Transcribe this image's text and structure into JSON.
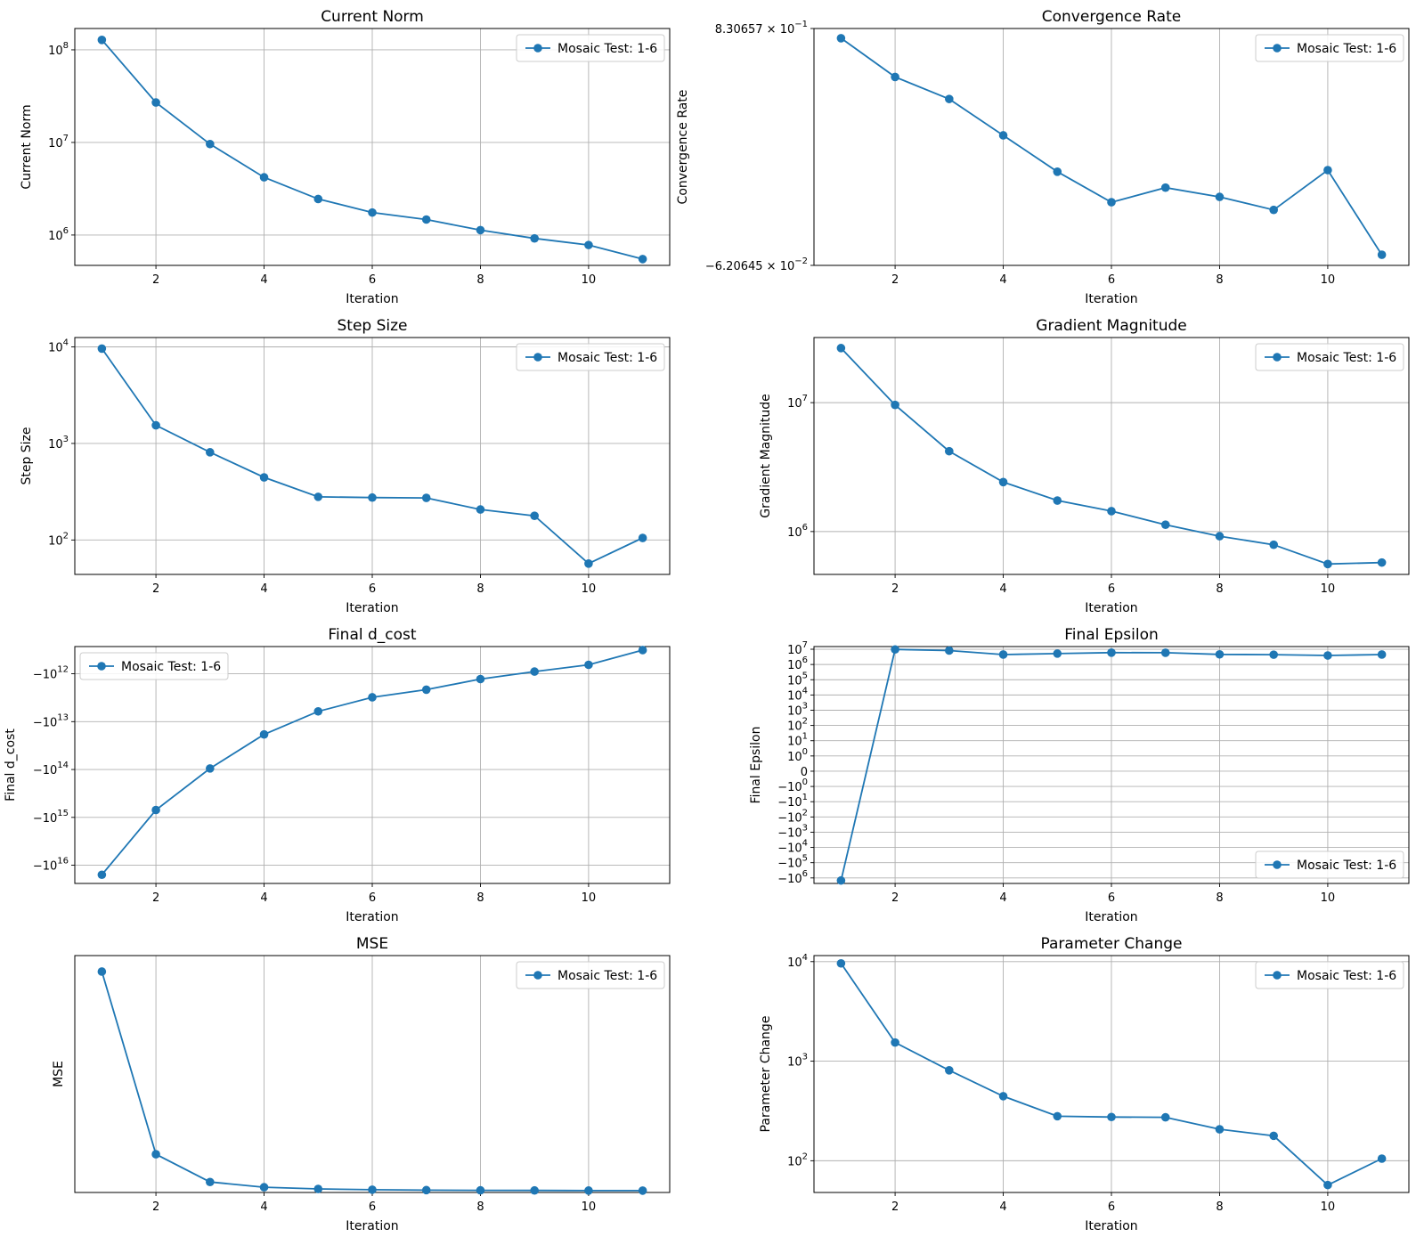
{
  "colors": {
    "series": "#1f77b4",
    "grid": "#b0b0b0",
    "frame": "#000000",
    "legend_border": "#cccccc"
  },
  "chart_data": [
    {
      "id": "current_norm",
      "type": "line",
      "title": "Current Norm",
      "xlabel": "Iteration",
      "ylabel": "Current Norm",
      "yscale": "log",
      "x": [
        1,
        2,
        3,
        4,
        5,
        6,
        7,
        8,
        9,
        10,
        11
      ],
      "series": [
        {
          "name": "Mosaic Test: 1-6",
          "values": [
            128000000,
            27000000,
            9600000,
            4200000,
            2450000,
            1750000,
            1470000,
            1130000,
            920000,
            780000,
            550000
          ]
        }
      ],
      "xlim": [
        0.5,
        11.5
      ],
      "ylim": [
        470000,
        170000000
      ],
      "xticks": [
        2,
        4,
        6,
        8,
        10
      ],
      "xtick_labels": [
        "2",
        "4",
        "6",
        "8",
        "10"
      ],
      "yticks": [
        1000000,
        10000000,
        100000000
      ],
      "ytick_labels": [
        {
          "base": "10",
          "exp": "6"
        },
        {
          "base": "10",
          "exp": "7"
        },
        {
          "base": "10",
          "exp": "8"
        }
      ],
      "legend": "top-right"
    },
    {
      "id": "convergence_rate",
      "type": "line",
      "title": "Convergence Rate",
      "xlabel": "Iteration",
      "ylabel": "Convergence Rate",
      "yscale": "linear",
      "x": [
        1,
        2,
        3,
        4,
        5,
        6,
        7,
        8,
        9,
        10,
        11
      ],
      "series": [
        {
          "name": "Mosaic Test: 1-6",
          "values": [
            0.794,
            0.648,
            0.565,
            0.428,
            0.291,
            0.176,
            0.231,
            0.196,
            0.147,
            0.297,
            -0.022
          ]
        }
      ],
      "xlim": [
        0.5,
        11.5
      ],
      "ylim": [
        -0.0620645,
        0.830657
      ],
      "xticks": [
        2,
        4,
        6,
        8,
        10
      ],
      "xtick_labels": [
        "2",
        "4",
        "6",
        "8",
        "10"
      ],
      "yticks": [
        0.830657,
        -0.0620645
      ],
      "ytick_labels": [
        {
          "base": "8.30657 × 10",
          "exp": "−1"
        },
        {
          "base": "−6.20645 × 10",
          "exp": "−2"
        }
      ],
      "legend": "top-right"
    },
    {
      "id": "step_size",
      "type": "line",
      "title": "Step Size",
      "xlabel": "Iteration",
      "ylabel": "Step Size",
      "yscale": "log",
      "x": [
        1,
        2,
        3,
        4,
        5,
        6,
        7,
        8,
        9,
        10,
        11
      ],
      "series": [
        {
          "name": "Mosaic Test: 1-6",
          "values": [
            9600,
            1540,
            810,
            445,
            280,
            275,
            273,
            207,
            178,
            57,
            105
          ]
        }
      ],
      "xlim": [
        0.5,
        11.5
      ],
      "ylim": [
        44,
        12500
      ],
      "xticks": [
        2,
        4,
        6,
        8,
        10
      ],
      "xtick_labels": [
        "2",
        "4",
        "6",
        "8",
        "10"
      ],
      "yticks": [
        100,
        1000,
        10000
      ],
      "ytick_labels": [
        {
          "base": "10",
          "exp": "2"
        },
        {
          "base": "10",
          "exp": "3"
        },
        {
          "base": "10",
          "exp": "4"
        }
      ],
      "legend": "top-right"
    },
    {
      "id": "gradient_magnitude",
      "type": "line",
      "title": "Gradient Magnitude",
      "xlabel": "Iteration",
      "ylabel": "Gradient Magnitude",
      "yscale": "log",
      "x": [
        1,
        2,
        3,
        4,
        5,
        6,
        7,
        8,
        9,
        10,
        11
      ],
      "series": [
        {
          "name": "Mosaic Test: 1-6",
          "values": [
            26500000,
            9600000,
            4200000,
            2420000,
            1740000,
            1440000,
            1130000,
            920000,
            790000,
            560000,
            575000
          ]
        }
      ],
      "xlim": [
        0.5,
        11.5
      ],
      "ylim": [
        465000,
        32000000
      ],
      "xticks": [
        2,
        4,
        6,
        8,
        10
      ],
      "xtick_labels": [
        "2",
        "4",
        "6",
        "8",
        "10"
      ],
      "yticks": [
        1000000,
        10000000
      ],
      "ytick_labels": [
        {
          "base": "10",
          "exp": "6"
        },
        {
          "base": "10",
          "exp": "7"
        }
      ],
      "legend": "top-right"
    },
    {
      "id": "final_d_cost",
      "type": "line",
      "title": "Final d_cost",
      "xlabel": "Iteration",
      "ylabel": "Final d_cost",
      "yscale": "symlog",
      "x": [
        1,
        2,
        3,
        4,
        5,
        6,
        7,
        8,
        9,
        10,
        11
      ],
      "series": [
        {
          "name": "Mosaic Test: 1-6",
          "values": [
            -15800000000000000,
            -700000000000000,
            -95000000000000,
            -18500000000000,
            -6100000000000,
            -3100000000000,
            -2150000000000,
            -1290000000000,
            -900000000000,
            -650000000000,
            -320000000000
          ]
        }
      ],
      "xlim": [
        0.5,
        11.5
      ],
      "ylim": [
        -24000000000000000,
        -270000000000
      ],
      "xticks": [
        2,
        4,
        6,
        8,
        10
      ],
      "xtick_labels": [
        "2",
        "4",
        "6",
        "8",
        "10"
      ],
      "yticks": [
        -1000000000000,
        -10000000000000,
        -100000000000000,
        -1000000000000000,
        -10000000000000000
      ],
      "ytick_labels": [
        {
          "base": "−10",
          "exp": "12"
        },
        {
          "base": "−10",
          "exp": "13"
        },
        {
          "base": "−10",
          "exp": "14"
        },
        {
          "base": "−10",
          "exp": "15"
        },
        {
          "base": "−10",
          "exp": "16"
        }
      ],
      "legend": "top-left"
    },
    {
      "id": "final_epsilon",
      "type": "line",
      "title": "Final Epsilon",
      "xlabel": "Iteration",
      "ylabel": "Final Epsilon",
      "yscale": "symlog",
      "x": [
        1,
        2,
        3,
        4,
        5,
        6,
        7,
        8,
        9,
        10,
        11
      ],
      "series": [
        {
          "name": "Mosaic Test: 1-6",
          "values": [
            -1480000,
            9700000,
            8200000,
            4500000,
            5200000,
            6000000,
            5900000,
            4600000,
            4400000,
            3900000,
            4500000
          ]
        }
      ],
      "xlim": [
        0.5,
        11.5
      ],
      "ylim": [
        -2300000,
        15000000
      ],
      "xticks": [
        2,
        4,
        6,
        8,
        10
      ],
      "xtick_labels": [
        "2",
        "4",
        "6",
        "8",
        "10"
      ],
      "yticks": [
        -1000000,
        -100000,
        -10000,
        -1000,
        -100,
        -10,
        -1,
        0,
        1,
        10,
        100,
        1000,
        10000,
        100000,
        1000000,
        10000000
      ],
      "ytick_labels": [
        {
          "base": "−10",
          "exp": "6"
        },
        {
          "base": "−10",
          "exp": "5"
        },
        {
          "base": "−10",
          "exp": "4"
        },
        {
          "base": "−10",
          "exp": "3"
        },
        {
          "base": "−10",
          "exp": "2"
        },
        {
          "base": "−10",
          "exp": "1"
        },
        {
          "base": "−10",
          "exp": "0"
        },
        {
          "base": "0",
          "exp": ""
        },
        {
          "base": "10",
          "exp": "0"
        },
        {
          "base": "10",
          "exp": "1"
        },
        {
          "base": "10",
          "exp": "2"
        },
        {
          "base": "10",
          "exp": "3"
        },
        {
          "base": "10",
          "exp": "4"
        },
        {
          "base": "10",
          "exp": "5"
        },
        {
          "base": "10",
          "exp": "6"
        },
        {
          "base": "10",
          "exp": "7"
        }
      ],
      "legend": "bottom-right"
    },
    {
      "id": "mse",
      "type": "line",
      "title": "MSE",
      "xlabel": "Iteration",
      "ylabel": "MSE",
      "yscale": "log",
      "x": [
        1,
        2,
        3,
        4,
        5,
        6,
        7,
        8,
        9,
        10,
        11
      ],
      "series": [
        {
          "name": "Mosaic Test: 1-6",
          "values": [
            1000,
            50,
            31.7,
            29.1,
            28.3,
            27.95,
            27.75,
            27.65,
            27.6,
            27.55,
            27.53
          ]
        }
      ],
      "xlim": [
        0.5,
        11.5
      ],
      "ylim": [
        26.7,
        1300
      ],
      "xticks": [
        2,
        4,
        6,
        8,
        10
      ],
      "xtick_labels": [
        "2",
        "4",
        "6",
        "8",
        "10"
      ],
      "yticks": [],
      "ytick_labels": [],
      "legend": "top-right"
    },
    {
      "id": "parameter_change",
      "type": "line",
      "title": "Parameter Change",
      "xlabel": "Iteration",
      "ylabel": "Parameter Change",
      "yscale": "log",
      "x": [
        1,
        2,
        3,
        4,
        5,
        6,
        7,
        8,
        9,
        10,
        11
      ],
      "series": [
        {
          "name": "Mosaic Test: 1-6",
          "values": [
            9600,
            1540,
            810,
            445,
            280,
            275,
            273,
            207,
            178,
            57,
            105
          ]
        }
      ],
      "xlim": [
        0.5,
        11.5
      ],
      "ylim": [
        48,
        11500
      ],
      "xticks": [
        2,
        4,
        6,
        8,
        10
      ],
      "xtick_labels": [
        "2",
        "4",
        "6",
        "8",
        "10"
      ],
      "yticks": [
        100,
        1000,
        10000
      ],
      "ytick_labels": [
        {
          "base": "10",
          "exp": "2"
        },
        {
          "base": "10",
          "exp": "3"
        },
        {
          "base": "10",
          "exp": "4"
        }
      ],
      "legend": "top-right"
    }
  ]
}
